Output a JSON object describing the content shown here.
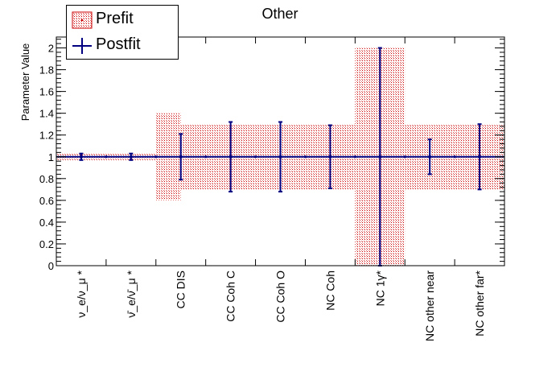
{
  "chart_data": {
    "type": "bar",
    "title": "Other",
    "ylabel": "Parameter Value",
    "xlabel": "",
    "ylim": [
      0,
      2.1
    ],
    "yticks": [
      0,
      0.2,
      0.4,
      0.6,
      0.8,
      1,
      1.2,
      1.4,
      1.6,
      1.8,
      2
    ],
    "ytick_labels": [
      "0",
      "0.2",
      "0.4",
      "0.6",
      "0.8",
      "1",
      "1.2",
      "1.4",
      "1.6",
      "1.8",
      "2"
    ],
    "categories": [
      "ν_e/ν_μ *",
      "ν̄_e/ν̄_μ *",
      "CC DIS",
      "CC Coh C",
      "CC Coh O",
      "NC Coh",
      "NC 1γ*",
      "NC other near",
      "NC other far*"
    ],
    "bins_per_category": 2,
    "legend": {
      "position": "top-left",
      "entries": [
        "Prefit",
        "Postfit"
      ]
    },
    "series": [
      {
        "name": "Prefit",
        "style": "hatched band",
        "color": "#cc0000",
        "bins_center": [
          1,
          1,
          1,
          1,
          1,
          1,
          1,
          1,
          1,
          1,
          1,
          1,
          1,
          1,
          1,
          1,
          1,
          1
        ],
        "bins_error": [
          0.03,
          0.03,
          0.03,
          0.03,
          0.4,
          0.3,
          0.3,
          0.3,
          0.3,
          0.3,
          0.3,
          0.3,
          1.0,
          1.0,
          0.3,
          0.3,
          0.3,
          0.3
        ]
      },
      {
        "name": "Postfit",
        "style": "points with error bars",
        "color": "#000080",
        "values": [
          1,
          1,
          1,
          1,
          1,
          1,
          1,
          1,
          1
        ],
        "errors": [
          0.03,
          0.03,
          0.21,
          0.32,
          0.32,
          0.29,
          1.0,
          0.16,
          0.3
        ]
      }
    ]
  }
}
